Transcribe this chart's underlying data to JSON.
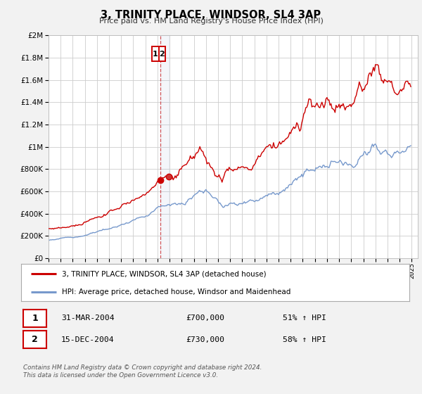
{
  "title": "3, TRINITY PLACE, WINDSOR, SL4 3AP",
  "subtitle": "Price paid vs. HM Land Registry's House Price Index (HPI)",
  "bg_color": "#f2f2f2",
  "plot_bg_color": "#ffffff",
  "grid_color": "#cccccc",
  "red_line_color": "#cc0000",
  "blue_line_color": "#7799cc",
  "dashed_line_color": "#cc0000",
  "sale1_date_num": 2004.25,
  "sale1_price": 700000,
  "sale2_date_num": 2004.96,
  "sale2_price": 730000,
  "legend_entries": [
    "3, TRINITY PLACE, WINDSOR, SL4 3AP (detached house)",
    "HPI: Average price, detached house, Windsor and Maidenhead"
  ],
  "table_rows": [
    {
      "num": "1",
      "date": "31-MAR-2004",
      "price": "£700,000",
      "pct": "51% ↑ HPI"
    },
    {
      "num": "2",
      "date": "15-DEC-2004",
      "price": "£730,000",
      "pct": "58% ↑ HPI"
    }
  ],
  "footer_line1": "Contains HM Land Registry data © Crown copyright and database right 2024.",
  "footer_line2": "This data is licensed under the Open Government Licence v3.0.",
  "ylim": [
    0,
    2000000
  ],
  "xlim_start": 1995.0,
  "xlim_end": 2025.5
}
